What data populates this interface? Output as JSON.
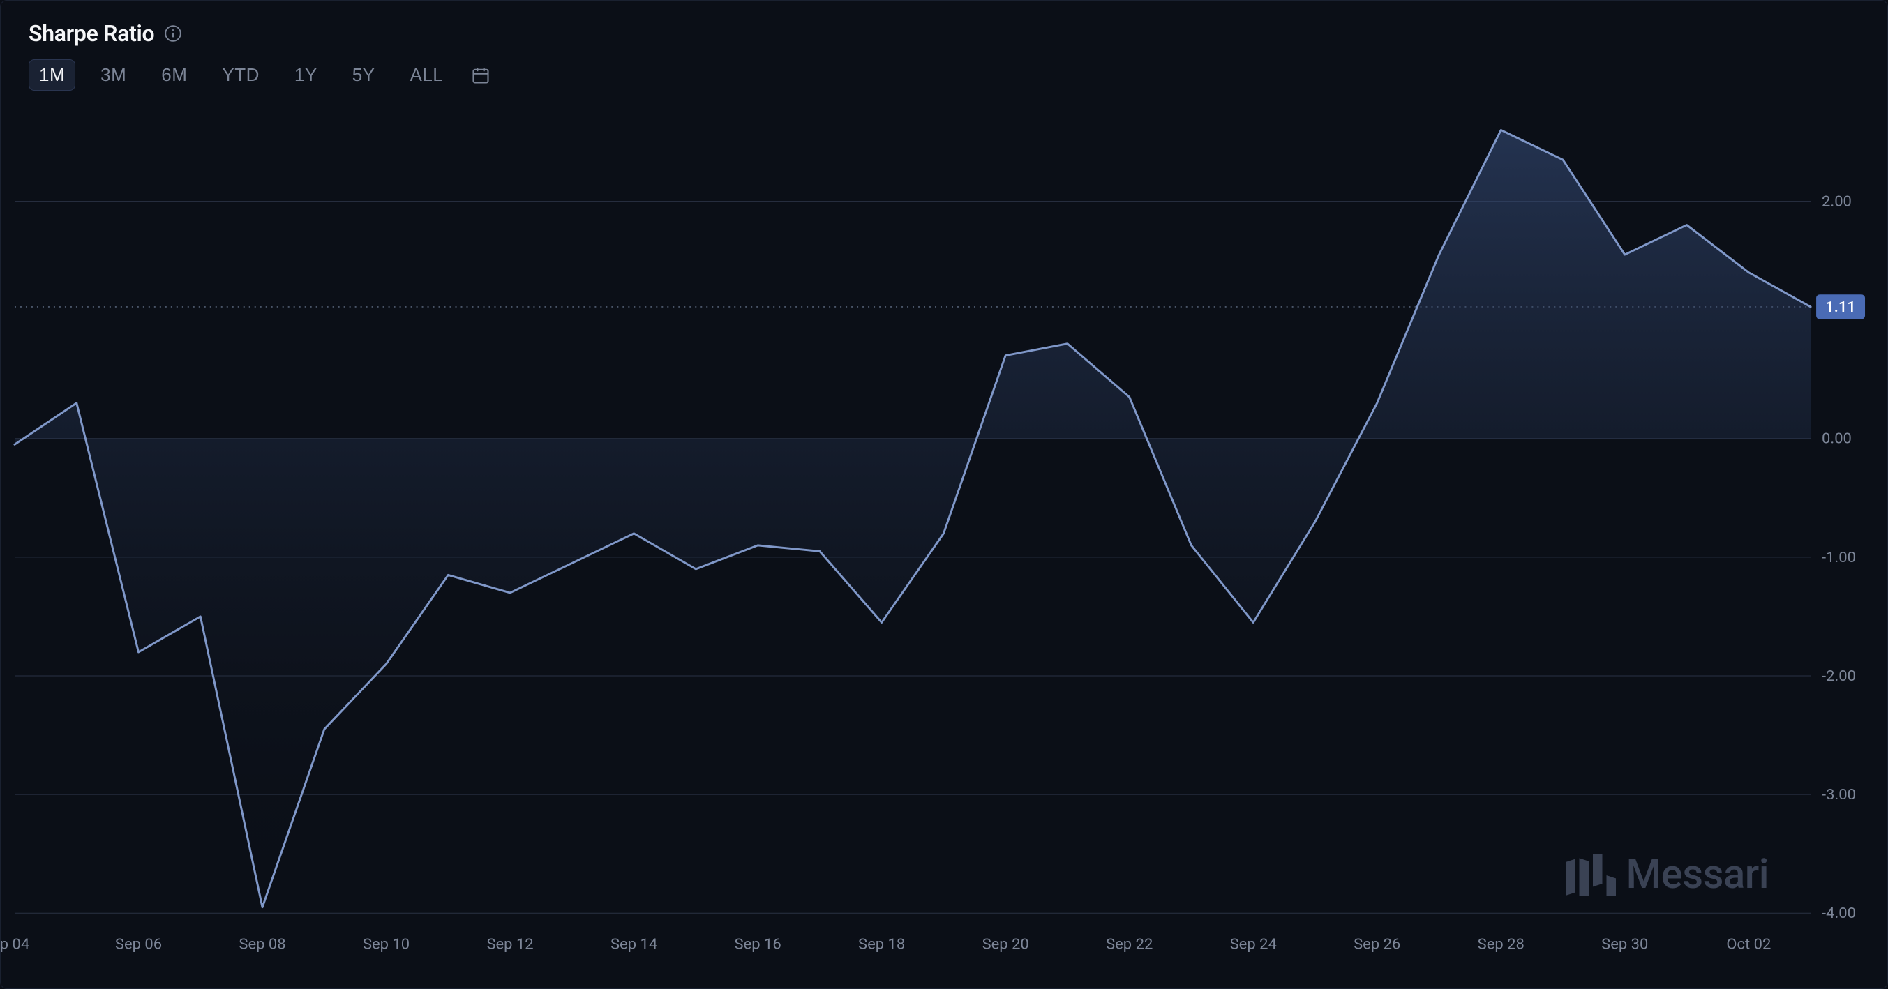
{
  "title": "Sharpe Ratio",
  "ranges": [
    "1M",
    "3M",
    "6M",
    "YTD",
    "1Y",
    "5Y",
    "ALL"
  ],
  "active_range": "1M",
  "watermark": "Messari",
  "chart": {
    "type": "area",
    "background_color": "#0b0f17",
    "grid_color": "#2a3244",
    "dotted_color": "#4a5568",
    "line_color": "#7f97c8",
    "line_width": 3,
    "area_gradient_top": "#38507f",
    "area_gradient_bottom": "#0b0f17",
    "axis_text_color": "#7c8597",
    "axis_fontsize": 22,
    "y_ticks": [
      2.0,
      0.0,
      -1.0,
      -2.0,
      -3.0,
      -4.0
    ],
    "y_min": -4.0,
    "y_max": 2.7,
    "x_labels_every_other": [
      "p 04",
      "Sep 06",
      "Sep 08",
      "Sep 10",
      "Sep 12",
      "Sep 14",
      "Sep 16",
      "Sep 18",
      "Sep 20",
      "Sep 22",
      "Sep 24",
      "Sep 26",
      "Sep 28",
      "Sep 30",
      "Oct 02"
    ],
    "last_value": 1.11,
    "last_badge_color": "#4a6bb5",
    "data": [
      {
        "x": "Sep 04",
        "y": -0.05
      },
      {
        "x": "Sep 05",
        "y": 0.3
      },
      {
        "x": "Sep 06",
        "y": -1.8
      },
      {
        "x": "Sep 07",
        "y": -1.5
      },
      {
        "x": "Sep 08",
        "y": -3.95
      },
      {
        "x": "Sep 09",
        "y": -2.45
      },
      {
        "x": "Sep 10",
        "y": -1.9
      },
      {
        "x": "Sep 11",
        "y": -1.15
      },
      {
        "x": "Sep 12",
        "y": -1.3
      },
      {
        "x": "Sep 13",
        "y": -1.05
      },
      {
        "x": "Sep 14",
        "y": -0.8
      },
      {
        "x": "Sep 15",
        "y": -1.1
      },
      {
        "x": "Sep 16",
        "y": -0.9
      },
      {
        "x": "Sep 17",
        "y": -0.95
      },
      {
        "x": "Sep 18",
        "y": -1.55
      },
      {
        "x": "Sep 19",
        "y": -0.8
      },
      {
        "x": "Sep 20",
        "y": 0.7
      },
      {
        "x": "Sep 21",
        "y": 0.8
      },
      {
        "x": "Sep 22",
        "y": 0.35
      },
      {
        "x": "Sep 23",
        "y": -0.9
      },
      {
        "x": "Sep 24",
        "y": -1.55
      },
      {
        "x": "Sep 25",
        "y": -0.7
      },
      {
        "x": "Sep 26",
        "y": 0.3
      },
      {
        "x": "Sep 27",
        "y": 1.55
      },
      {
        "x": "Sep 28",
        "y": 2.6
      },
      {
        "x": "Sep 29",
        "y": 2.35
      },
      {
        "x": "Sep 30",
        "y": 1.55
      },
      {
        "x": "Oct 01",
        "y": 1.8
      },
      {
        "x": "Oct 02",
        "y": 1.4
      },
      {
        "x": "Oct 03",
        "y": 1.11
      }
    ]
  }
}
